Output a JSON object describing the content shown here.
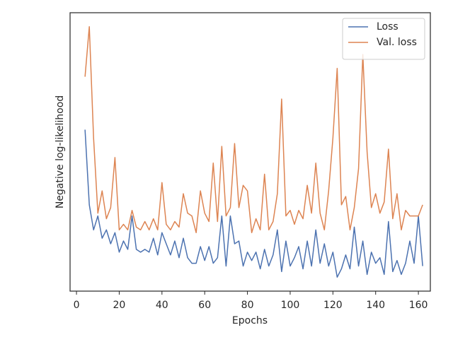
{
  "chart_data": {
    "type": "line",
    "xlabel": "Epochs",
    "ylabel": "Negative log-likelihood",
    "x": [
      4,
      6,
      8,
      10,
      12,
      14,
      16,
      18,
      20,
      22,
      24,
      26,
      28,
      30,
      32,
      34,
      36,
      38,
      40,
      42,
      44,
      46,
      48,
      50,
      52,
      54,
      56,
      58,
      60,
      62,
      64,
      66,
      68,
      70,
      72,
      74,
      76,
      78,
      80,
      82,
      84,
      86,
      88,
      90,
      92,
      94,
      96,
      98,
      100,
      102,
      104,
      106,
      108,
      110,
      112,
      114,
      116,
      118,
      120,
      122,
      124,
      126,
      128,
      130,
      132,
      134,
      136,
      138,
      140,
      142,
      144,
      146,
      148,
      150,
      152,
      154,
      156,
      158,
      160,
      162
    ],
    "series": [
      {
        "name": "Loss",
        "color": "#4c72b0",
        "values": [
          58,
          31,
          22,
          27,
          19,
          22,
          17,
          21,
          14,
          18,
          15,
          27,
          15,
          14,
          15,
          14,
          19,
          13,
          21,
          17,
          13,
          18,
          12,
          19,
          12,
          10,
          10,
          16,
          11,
          16,
          10,
          12,
          27,
          9,
          27,
          17,
          18,
          9,
          14,
          11,
          14,
          8,
          15,
          9,
          13,
          22,
          7,
          18,
          9,
          12,
          16,
          8,
          18,
          9,
          22,
          10,
          17,
          9,
          14,
          5,
          8,
          13,
          8,
          23,
          9,
          18,
          6,
          14,
          10,
          12,
          6,
          25,
          7,
          11,
          6,
          10,
          18,
          10,
          27,
          9
        ]
      },
      {
        "name": "Val. loss",
        "color": "#dd8452",
        "values": [
          77,
          95,
          55,
          28,
          36,
          26,
          30,
          48,
          22,
          24,
          22,
          29,
          23,
          22,
          25,
          22,
          26,
          22,
          39,
          24,
          22,
          25,
          23,
          35,
          28,
          27,
          21,
          36,
          28,
          25,
          46,
          25,
          52,
          27,
          30,
          53,
          30,
          38,
          36,
          21,
          26,
          22,
          42,
          22,
          25,
          35,
          69,
          27,
          29,
          24,
          29,
          26,
          38,
          28,
          46,
          28,
          22,
          36,
          55,
          80,
          31,
          34,
          22,
          30,
          44,
          85,
          50,
          30,
          35,
          28,
          32,
          51,
          26,
          35,
          22,
          29,
          27,
          27,
          27,
          31
        ]
      }
    ],
    "xlim": [
      -3,
      165.6
    ],
    "xticks": [
      0,
      20,
      40,
      60,
      80,
      100,
      120,
      140,
      160
    ],
    "ylim": [
      0,
      100
    ],
    "legend": "upper right"
  }
}
